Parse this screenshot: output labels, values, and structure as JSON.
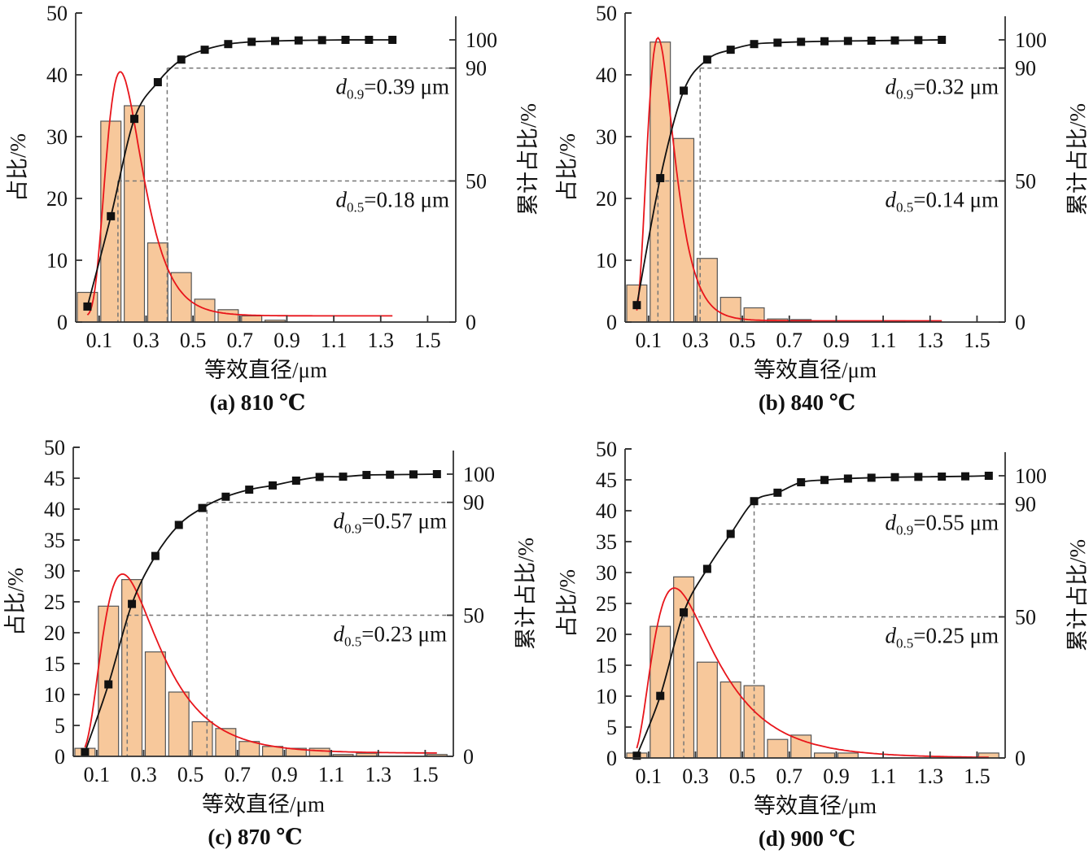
{
  "chart_data": [
    {
      "type": "bar",
      "caption": "(a) 810 ℃",
      "xlabel": "等效直径/μm",
      "ylabel": "占比/%",
      "ylabel_right": "累计占比/%",
      "xlim": [
        0,
        1.62
      ],
      "ylim": [
        0,
        50
      ],
      "ylim_right": [
        0,
        100
      ],
      "xticks": [
        0.1,
        0.3,
        0.5,
        0.7,
        0.9,
        1.1,
        1.3,
        1.5
      ],
      "yticks": [
        0,
        10,
        20,
        30,
        40,
        50
      ],
      "yticks_right": [
        0,
        50,
        90,
        100
      ],
      "bins": {
        "start": 0,
        "width": 0.1
      },
      "bar_values": [
        4.8,
        32.5,
        35,
        12.8,
        8,
        3.7,
        2,
        1,
        0.3,
        0,
        0,
        0,
        0,
        0,
        0,
        0
      ],
      "cumulative": {
        "x": [
          0.05,
          0.15,
          0.25,
          0.35,
          0.45,
          0.55,
          0.65,
          0.75,
          0.85,
          0.95,
          1.05,
          1.15,
          1.25,
          1.35
        ],
        "y": [
          5.5,
          37.5,
          72,
          85,
          93,
          96.5,
          98.5,
          99.3,
          99.6,
          99.8,
          99.9,
          100,
          100,
          100
        ]
      },
      "lognormal_fit": {
        "peak_x": 0.19,
        "peak_y": 40.5,
        "baseline": 1,
        "width": 0.4,
        "x_range": [
          0.05,
          1.35
        ]
      },
      "d50": {
        "value": 0.18,
        "label": "=0.18 μm",
        "sub": "0.5"
      },
      "d90": {
        "value": 0.39,
        "label": "=0.39 μm",
        "sub": "0.9"
      }
    },
    {
      "type": "bar",
      "caption": "(b) 840 ℃",
      "xlabel": "等效直径/μm",
      "ylabel": "占比/%",
      "ylabel_right": "累计占比/%",
      "xlim": [
        0,
        1.62
      ],
      "ylim": [
        0,
        50
      ],
      "ylim_right": [
        0,
        100
      ],
      "xticks": [
        0.1,
        0.3,
        0.5,
        0.7,
        0.9,
        1.1,
        1.3,
        1.5
      ],
      "yticks": [
        0,
        10,
        20,
        30,
        40,
        50
      ],
      "yticks_right": [
        0,
        50,
        90,
        100
      ],
      "bins": {
        "start": 0,
        "width": 0.1
      },
      "bar_values": [
        6,
        45.3,
        29.7,
        10.3,
        4,
        2.3,
        0.5,
        0.4,
        0,
        0,
        0,
        0.2,
        0,
        0,
        0,
        0
      ],
      "cumulative": {
        "x": [
          0.05,
          0.15,
          0.25,
          0.35,
          0.45,
          0.55,
          0.65,
          0.75,
          0.85,
          0.95,
          1.05,
          1.15,
          1.25,
          1.35
        ],
        "y": [
          6,
          51,
          82,
          93,
          96.5,
          98.5,
          99,
          99.3,
          99.5,
          99.6,
          99.7,
          99.8,
          99.9,
          100
        ]
      },
      "lognormal_fit": {
        "peak_x": 0.14,
        "peak_y": 46,
        "baseline": 0.2,
        "width": 0.4,
        "x_range": [
          0.05,
          1.35
        ]
      },
      "d50": {
        "value": 0.14,
        "label": "=0.14 μm",
        "sub": "0.5"
      },
      "d90": {
        "value": 0.32,
        "label": "=0.32 μm",
        "sub": "0.9"
      }
    },
    {
      "type": "bar",
      "caption": "(c) 870 ℃",
      "xlabel": "等效直径/μm",
      "ylabel": "占比/%",
      "ylabel_right": "累计占比/%",
      "xlim": [
        0,
        1.62
      ],
      "ylim": [
        0,
        50
      ],
      "ylim_right": [
        0,
        100
      ],
      "xticks": [
        0.1,
        0.3,
        0.5,
        0.7,
        0.9,
        1.1,
        1.3,
        1.5
      ],
      "yticks": [
        0,
        5,
        10,
        15,
        20,
        25,
        30,
        35,
        40,
        45,
        50
      ],
      "yticks_right": [
        0,
        50,
        90,
        100
      ],
      "bins": {
        "start": 0,
        "width": 0.1
      },
      "bar_values": [
        1.3,
        24.3,
        28.6,
        16.9,
        10.4,
        5.6,
        4.5,
        2.4,
        1.6,
        1.3,
        1.3,
        0.3,
        0.5,
        0,
        0,
        0.3
      ],
      "cumulative": {
        "x": [
          0.05,
          0.15,
          0.25,
          0.35,
          0.45,
          0.55,
          0.65,
          0.75,
          0.85,
          0.95,
          1.05,
          1.15,
          1.25,
          1.35,
          1.45,
          1.55
        ],
        "y": [
          1.5,
          25.5,
          54,
          71,
          82,
          88,
          92,
          94.5,
          96,
          97.7,
          99,
          99.1,
          99.7,
          99.8,
          99.9,
          100.2
        ]
      },
      "lognormal_fit": {
        "peak_x": 0.21,
        "peak_y": 29.5,
        "baseline": 0.5,
        "width": 0.55,
        "x_range": [
          0.05,
          1.55
        ]
      },
      "d50": {
        "value": 0.23,
        "label": "=0.23 μm",
        "sub": "0.5"
      },
      "d90": {
        "value": 0.57,
        "label": "=0.57 μm",
        "sub": "0.9"
      }
    },
    {
      "type": "bar",
      "caption": "(d) 900 ℃",
      "xlabel": "等效直径/μm",
      "ylabel": "占比/%",
      "ylabel_right": "累计占比/%",
      "xlim": [
        0,
        1.62
      ],
      "ylim": [
        0,
        50
      ],
      "ylim_right": [
        0,
        100
      ],
      "xticks": [
        0.1,
        0.3,
        0.5,
        0.7,
        0.9,
        1.1,
        1.3,
        1.5
      ],
      "yticks": [
        0,
        5,
        10,
        15,
        20,
        25,
        30,
        35,
        40,
        45,
        50
      ],
      "yticks_right": [
        0,
        50,
        90,
        100
      ],
      "bins": {
        "start": 0,
        "width": 0.1
      },
      "bar_values": [
        0.8,
        21.3,
        29.3,
        15.5,
        12.3,
        11.7,
        3,
        3.7,
        0.8,
        0.8,
        0,
        0,
        0,
        0,
        0,
        0.8
      ],
      "cumulative": {
        "x": [
          0.05,
          0.15,
          0.25,
          0.35,
          0.45,
          0.55,
          0.65,
          0.75,
          0.85,
          0.95,
          1.05,
          1.15,
          1.25,
          1.35,
          1.45,
          1.55
        ],
        "y": [
          0.8,
          22,
          51.6,
          67,
          79.4,
          91,
          94,
          97.7,
          98.5,
          99,
          99.3,
          99.5,
          99.6,
          99.7,
          99.8,
          100.2
        ]
      },
      "lognormal_fit": {
        "peak_x": 0.21,
        "peak_y": 27.5,
        "baseline": 0,
        "width": 0.6,
        "x_range": [
          0.05,
          1.55
        ]
      },
      "d50": {
        "value": 0.25,
        "label": "=0.25 μm",
        "sub": "0.5"
      },
      "d90": {
        "value": 0.55,
        "label": "=0.55 μm",
        "sub": "0.9"
      }
    }
  ],
  "colors": {
    "bar_fill": "#f7c89b",
    "bar_stroke": "#555555",
    "fit_curve": "#e8151b",
    "cumulative": "#111111",
    "guide": "#777777"
  }
}
